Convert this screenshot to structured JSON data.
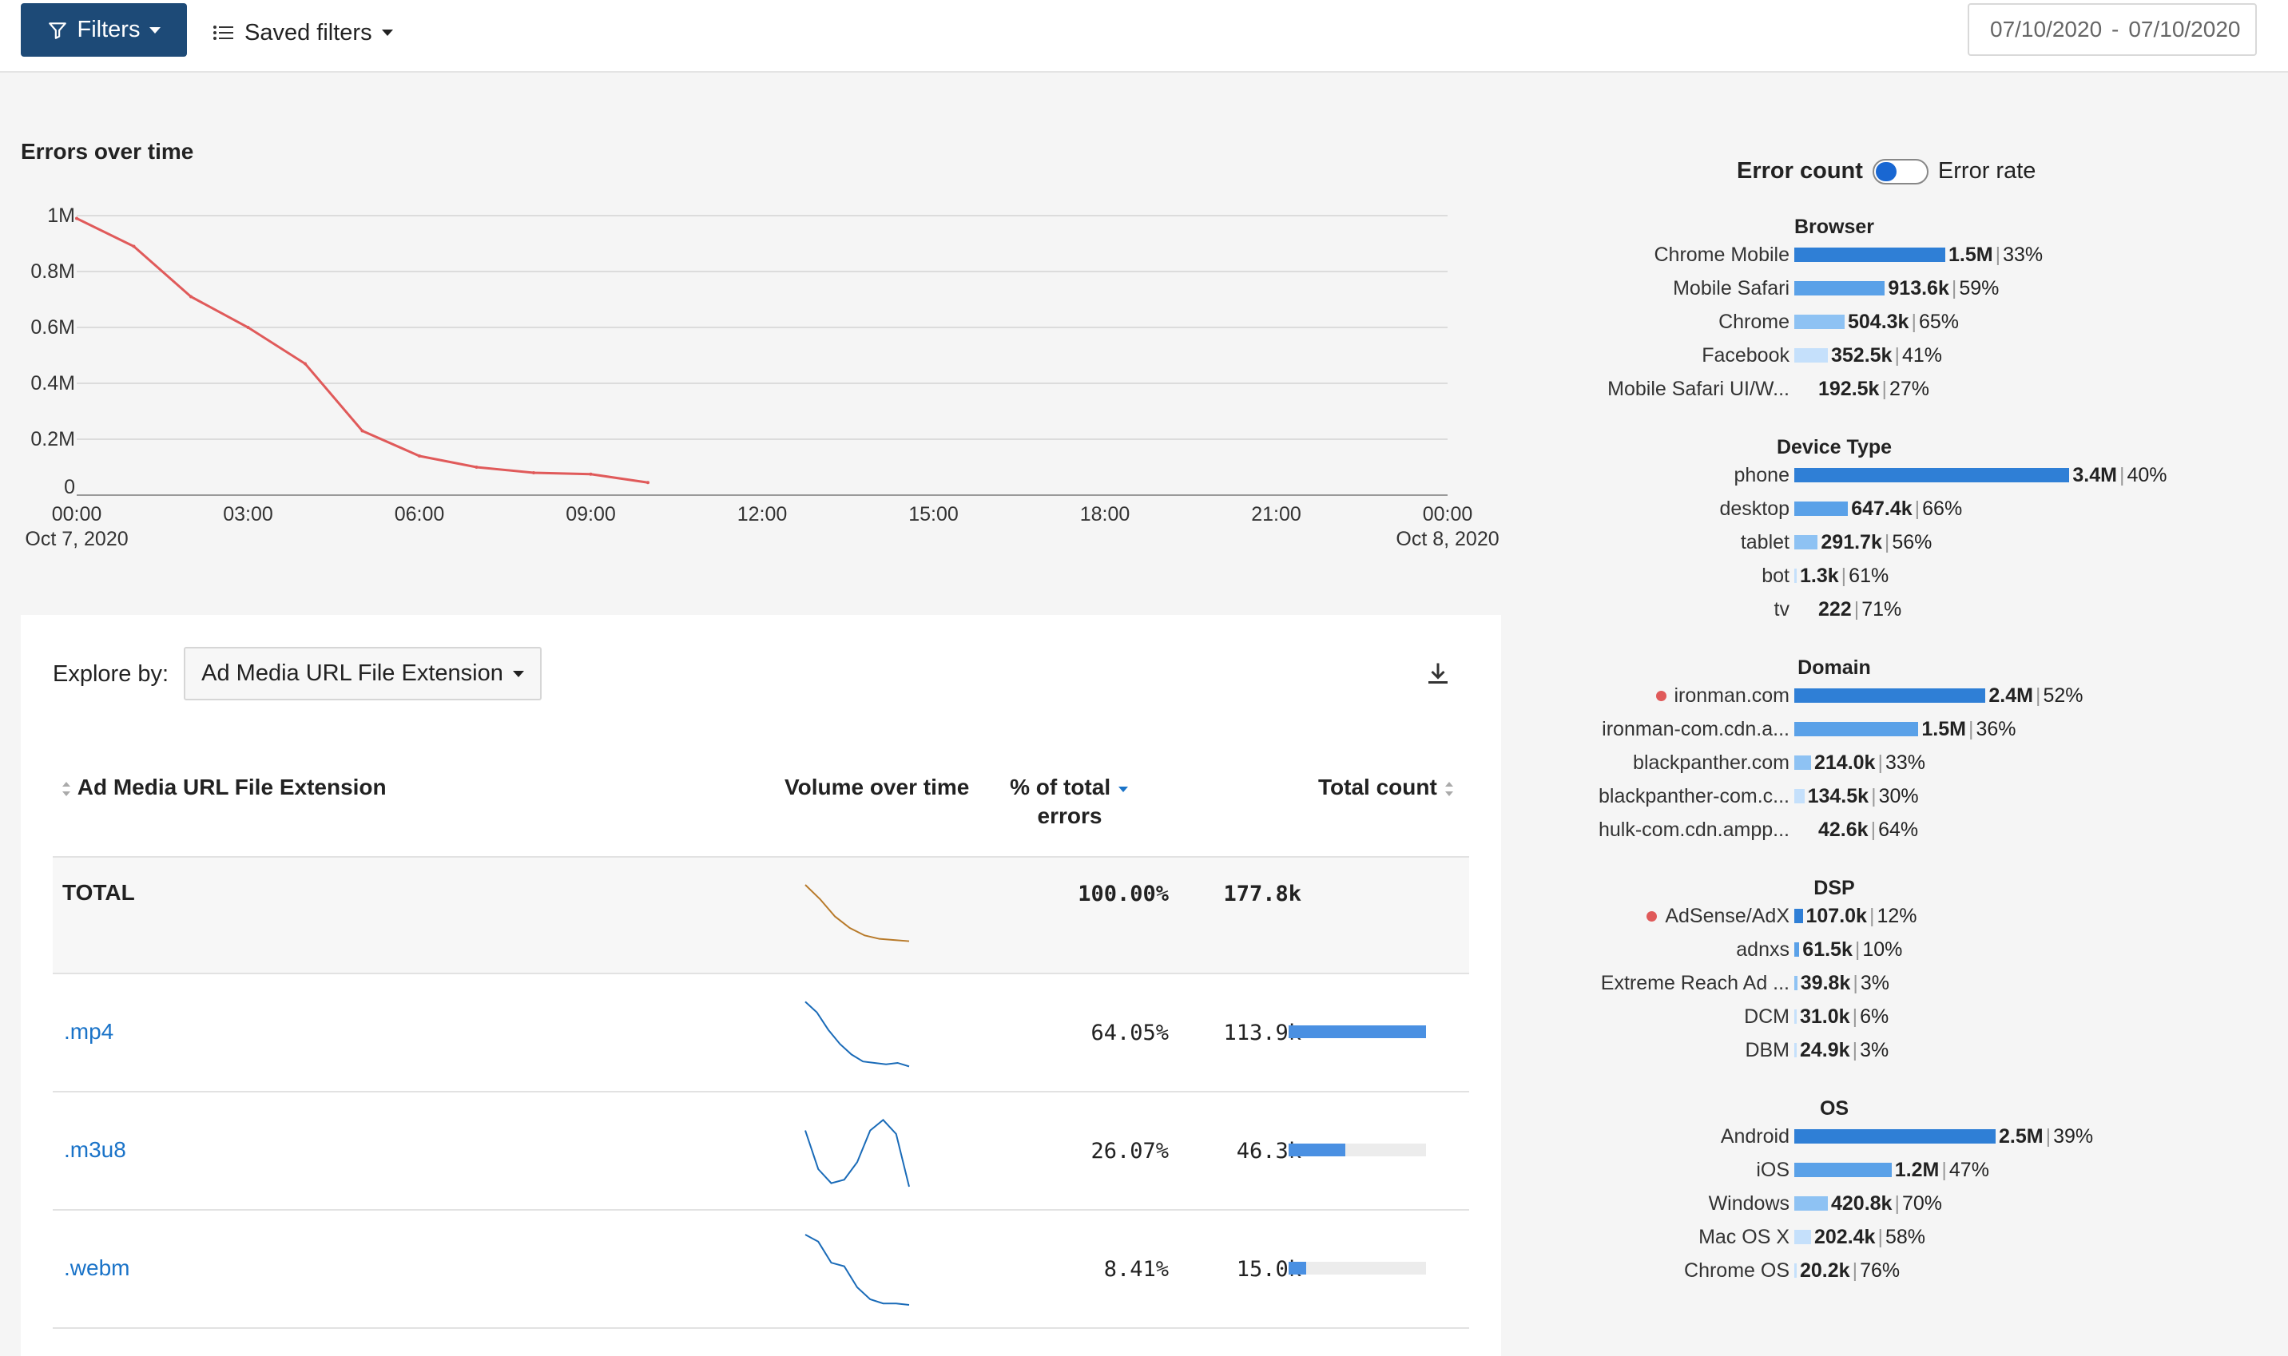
{
  "toolbar": {
    "filters_label": "Filters",
    "saved_filters_label": "Saved filters",
    "date_from": "07/10/2020",
    "date_sep": "-",
    "date_to": "07/10/2020"
  },
  "colors": {
    "line": "#e05a5a",
    "accent": "#1d4a77",
    "bar_dark": "#2f7fd6",
    "bar_mid": "#5aa1e8",
    "bar_light": "#8ec2f3",
    "bar_lighter": "#c5e0fb",
    "link": "#1a73c8",
    "dot": "#e05a5a"
  },
  "errors_over_time": {
    "title": "Errors over time",
    "chart_data": {
      "type": "line",
      "y_ticks": [
        "1M",
        "0.8M",
        "0.6M",
        "0.4M",
        "0.2M",
        "0"
      ],
      "y_tick_values": [
        1000000,
        800000,
        600000,
        400000,
        200000,
        0
      ],
      "ylim": [
        0,
        1000000
      ],
      "x_ticks": [
        "00:00",
        "03:00",
        "06:00",
        "09:00",
        "12:00",
        "15:00",
        "18:00",
        "21:00",
        "00:00"
      ],
      "x_tick_hours": [
        0,
        3,
        6,
        9,
        12,
        15,
        18,
        21,
        24
      ],
      "x_subticks": [
        "Oct 7, 2020",
        "",
        "",
        "",
        "",
        "",
        "",
        "",
        "Oct 8, 2020"
      ],
      "xlim_hours": [
        0,
        24
      ],
      "grid": true,
      "series": [
        {
          "hours": [
            0,
            1,
            2,
            3,
            4,
            5,
            6,
            7,
            8,
            9,
            10
          ],
          "values": [
            990000,
            890000,
            710000,
            600000,
            470000,
            230000,
            140000,
            100000,
            80000,
            75000,
            45000
          ]
        }
      ]
    }
  },
  "explore": {
    "label": "Explore by:",
    "selected": "Ad Media URL File Extension"
  },
  "table": {
    "headers": {
      "name": "Ad Media URL File Extension",
      "volume": "Volume over time",
      "pct_line1": "% of total",
      "pct_line2": "errors",
      "count": "Total count"
    },
    "total": {
      "name": "TOTAL",
      "pct": "100.00%",
      "count": "177.8k",
      "spark": [
        1,
        0.75,
        0.45,
        0.25,
        0.12,
        0.06,
        0.04,
        0.02
      ]
    },
    "rows": [
      {
        "name": ".mp4",
        "pct": "64.05%",
        "count": "113.9k",
        "share": 1.0,
        "spark": [
          0.95,
          0.8,
          0.55,
          0.35,
          0.2,
          0.1,
          0.08,
          0.06,
          0.08,
          0.03
        ]
      },
      {
        "name": ".m3u8",
        "pct": "26.07%",
        "count": "46.3k",
        "share": 0.41,
        "spark": [
          0.8,
          0.25,
          0.05,
          0.1,
          0.35,
          0.8,
          0.95,
          0.75,
          0.0
        ]
      },
      {
        "name": ".webm",
        "pct": "8.41%",
        "count": "15.0k",
        "share": 0.13,
        "spark": [
          1,
          0.9,
          0.6,
          0.55,
          0.25,
          0.08,
          0.02,
          0.02,
          0.0
        ]
      }
    ]
  },
  "breakdown": {
    "toggle_left": "Error count",
    "toggle_right": "Error rate",
    "groups": [
      {
        "title": "Browser",
        "items": [
          {
            "label": "Chrome Mobile",
            "value": "1.5M",
            "rate": "33%",
            "share": 0.45,
            "shade": "bar_dark"
          },
          {
            "label": "Mobile Safari",
            "value": "913.6k",
            "rate": "59%",
            "share": 0.27,
            "shade": "bar_mid"
          },
          {
            "label": "Chrome",
            "value": "504.3k",
            "rate": "65%",
            "share": 0.15,
            "shade": "bar_light"
          },
          {
            "label": "Facebook",
            "value": "352.5k",
            "rate": "41%",
            "share": 0.1,
            "shade": "bar_lighter"
          },
          {
            "label": "Mobile Safari UI/W...",
            "value": "192.5k",
            "rate": "27%",
            "share": 0.0,
            "shade": "bar_lighter"
          }
        ]
      },
      {
        "title": "Device Type",
        "items": [
          {
            "label": "phone",
            "value": "3.4M",
            "rate": "40%",
            "share": 0.82,
            "shade": "bar_dark"
          },
          {
            "label": "desktop",
            "value": "647.4k",
            "rate": "66%",
            "share": 0.16,
            "shade": "bar_mid"
          },
          {
            "label": "tablet",
            "value": "291.7k",
            "rate": "56%",
            "share": 0.07,
            "shade": "bar_light"
          },
          {
            "label": "bot",
            "value": "1.3k",
            "rate": "61%",
            "share": 0.004,
            "shade": "bar_lighter"
          },
          {
            "label": "tv",
            "value": "222",
            "rate": "71%",
            "share": 0.0,
            "shade": "bar_lighter"
          }
        ]
      },
      {
        "title": "Domain",
        "items": [
          {
            "label": "ironman.com",
            "dot": true,
            "value": "2.4M",
            "rate": "52%",
            "share": 0.57,
            "shade": "bar_dark"
          },
          {
            "label": "ironman-com.cdn.a...",
            "value": "1.5M",
            "rate": "36%",
            "share": 0.37,
            "shade": "bar_mid"
          },
          {
            "label": "blackpanther.com",
            "value": "214.0k",
            "rate": "33%",
            "share": 0.05,
            "shade": "bar_light"
          },
          {
            "label": "blackpanther-com.c...",
            "value": "134.5k",
            "rate": "30%",
            "share": 0.03,
            "shade": "bar_lighter"
          },
          {
            "label": "hulk-com.cdn.ampp...",
            "value": "42.6k",
            "rate": "64%",
            "share": 0.0,
            "shade": "bar_lighter"
          }
        ]
      },
      {
        "title": "DSP",
        "items": [
          {
            "label": "AdSense/AdX",
            "dot": true,
            "value": "107.0k",
            "rate": "12%",
            "share": 0.025,
            "shade": "bar_dark"
          },
          {
            "label": "adnxs",
            "value": "61.5k",
            "rate": "10%",
            "share": 0.015,
            "shade": "bar_mid"
          },
          {
            "label": "Extreme Reach Ad ...",
            "value": "39.8k",
            "rate": "3%",
            "share": 0.009,
            "shade": "bar_light"
          },
          {
            "label": "DCM",
            "value": "31.0k",
            "rate": "6%",
            "share": 0.007,
            "shade": "bar_lighter"
          },
          {
            "label": "DBM",
            "value": "24.9k",
            "rate": "3%",
            "share": 0.006,
            "shade": "bar_lighter"
          }
        ]
      },
      {
        "title": "OS",
        "items": [
          {
            "label": "Android",
            "value": "2.5M",
            "rate": "39%",
            "share": 0.6,
            "shade": "bar_dark"
          },
          {
            "label": "iOS",
            "value": "1.2M",
            "rate": "47%",
            "share": 0.29,
            "shade": "bar_mid"
          },
          {
            "label": "Windows",
            "value": "420.8k",
            "rate": "70%",
            "share": 0.1,
            "shade": "bar_light"
          },
          {
            "label": "Mac OS X",
            "value": "202.4k",
            "rate": "58%",
            "share": 0.05,
            "shade": "bar_lighter"
          },
          {
            "label": "Chrome OS",
            "value": "20.2k",
            "rate": "76%",
            "share": 0.005,
            "shade": "bar_lighter"
          }
        ]
      }
    ]
  }
}
